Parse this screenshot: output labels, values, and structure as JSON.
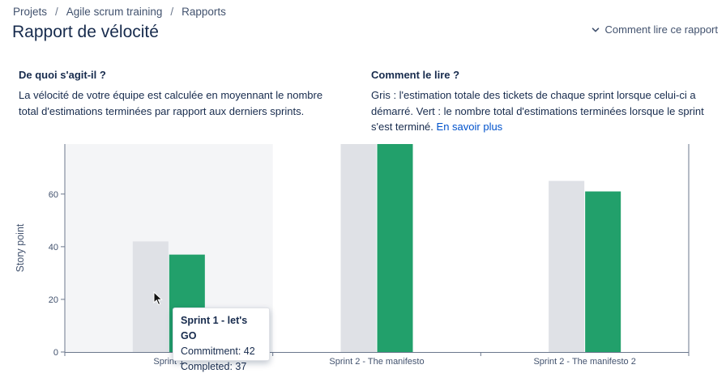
{
  "breadcrumb": {
    "items": [
      "Projets",
      "Agile scrum training",
      "Rapports"
    ],
    "separator": "/"
  },
  "page": {
    "title": "Rapport de vélocité",
    "how_to_read_link": "Comment lire ce rapport"
  },
  "about": {
    "heading": "De quoi s'agit-il ?",
    "text": "La vélocité de votre équipe est calculée en moyennant le nombre total d'estimations terminées par rapport aux derniers sprints."
  },
  "how": {
    "heading": "Comment le lire ?",
    "text": "Gris : l'estimation totale des tickets de chaque sprint lorsque celui-ci a démarré. Vert : le nombre total d'estimations terminées lorsque le sprint s'est terminé.",
    "link": "En savoir plus"
  },
  "tooltip": {
    "title": "Sprint 1 - let's GO",
    "commitment": "Commitment: 42",
    "completed": "Completed: 37"
  },
  "colors": {
    "commitment": "#dfe1e6",
    "completed": "#22a06b",
    "axis": "#6b778c",
    "link": "#0052cc",
    "hover_band": "#f4f5f7"
  },
  "icons": {
    "how_link": "chevron-down-icon",
    "pointer": "mouse-cursor-icon"
  },
  "chart_data": {
    "type": "bar",
    "ylabel": "Story point",
    "xlabel": "",
    "ylim": [
      0,
      79
    ],
    "yticks": [
      0,
      20,
      40,
      60
    ],
    "grid": false,
    "categories": [
      "Sprint 1",
      "Sprint 2 - The manifesto",
      "Sprint 2 - The manifesto 2"
    ],
    "series": [
      {
        "name": "Commitment",
        "values": [
          42,
          79,
          65
        ]
      },
      {
        "name": "Completed",
        "values": [
          37,
          79,
          61
        ]
      }
    ],
    "highlighted_category": "Sprint 1"
  }
}
